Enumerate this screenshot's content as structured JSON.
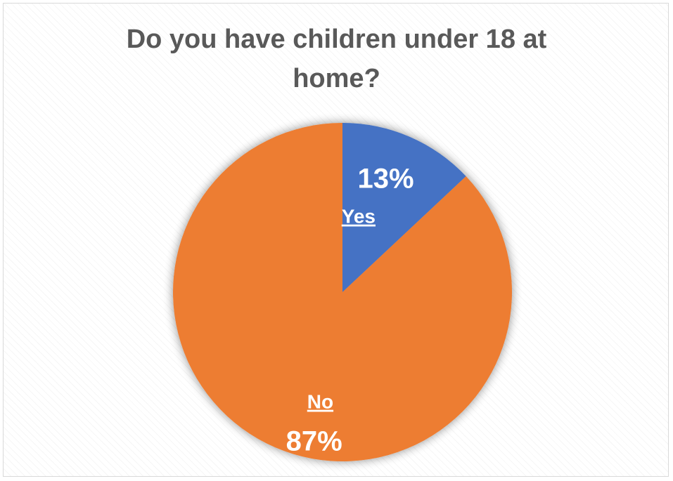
{
  "chart_data": {
    "type": "pie",
    "title_lines": [
      "Do you have children under 18 at",
      "home?"
    ],
    "slices": [
      {
        "label": "Yes",
        "value": 13,
        "value_label": "13%",
        "color": "#4472C4"
      },
      {
        "label": "No",
        "value": 87,
        "value_label": "87%",
        "color": "#ED7D31"
      }
    ],
    "start_angle_deg": 0,
    "direction": "clockwise",
    "legend": "none",
    "data_labels": "inside"
  }
}
